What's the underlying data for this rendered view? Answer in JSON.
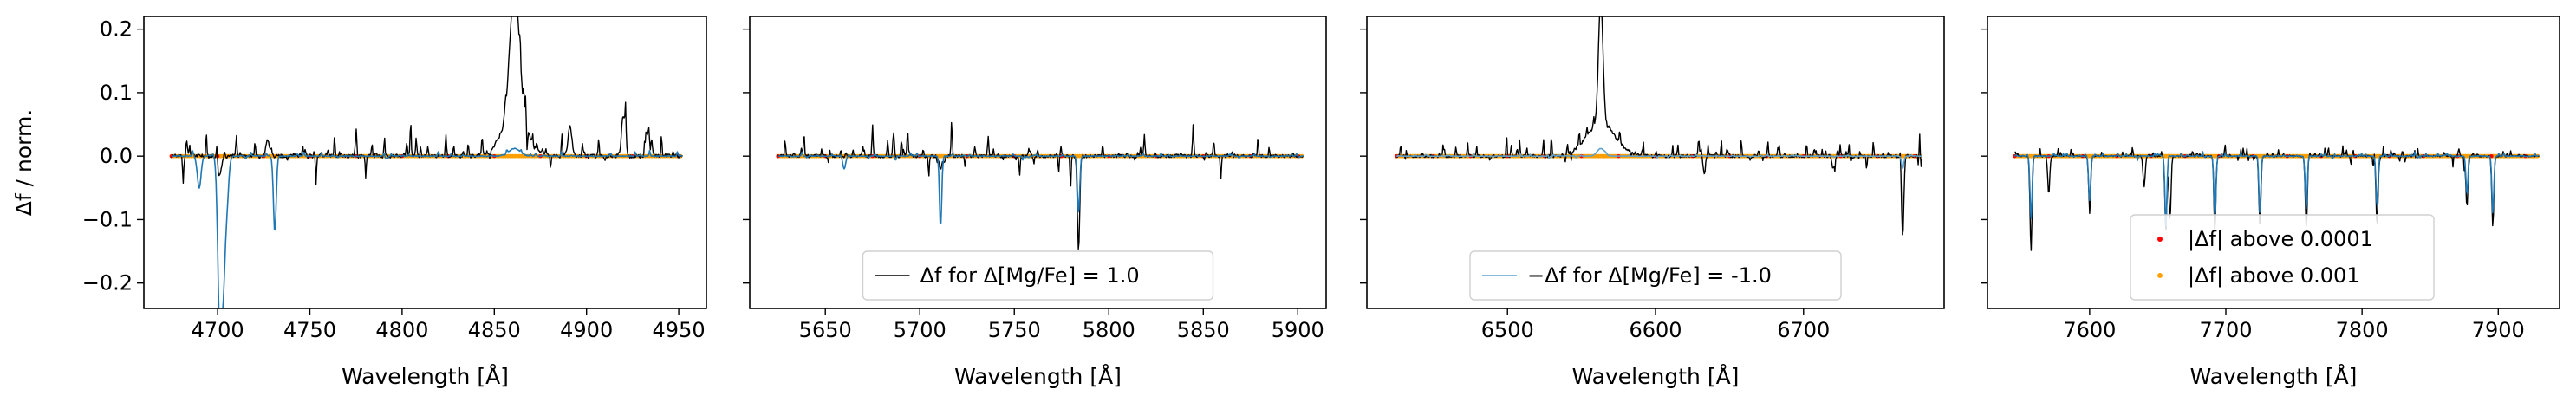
{
  "chart_data": [
    {
      "type": "line",
      "xlabel": "Wavelength [Å]",
      "ylabel": "Δf / norm.",
      "xlim": [
        4660,
        4965
      ],
      "ylim": [
        -0.24,
        0.22
      ],
      "xticks": [
        4700,
        4750,
        4800,
        4850,
        4900,
        4950
      ],
      "yticks": [
        -0.2,
        -0.1,
        0.0,
        0.1,
        0.2
      ],
      "ytick_labels": [
        "−0.2",
        "−0.1",
        "0.0",
        "0.1",
        "0.2"
      ],
      "x_range": [
        4675,
        4952
      ],
      "series": [
        {
          "style": "black-line",
          "color": "#000000",
          "features": [
            [
              4701,
              -0.03,
              2
            ],
            [
              4727,
              0.02,
              2
            ],
            [
              4861,
              0.21,
              5
            ],
            [
              4861,
              0.06,
              14
            ],
            [
              4920,
              0.06,
              2
            ],
            [
              4891,
              0.05,
              2
            ],
            [
              4934,
              0.05,
              2
            ]
          ],
          "noise": 0.025,
          "seed": 11
        },
        {
          "style": "blue-line",
          "color": "#1f77b4",
          "features": [
            [
              4701,
              -0.24,
              2
            ],
            [
              4703,
              -0.19,
              2
            ],
            [
              4731,
              -0.12,
              1.5
            ],
            [
              4690,
              -0.05,
              2
            ],
            [
              4861,
              0.012,
              6
            ],
            [
              4705,
              -0.07,
              2
            ]
          ],
          "noise": 0.004,
          "seed": 23
        },
        {
          "style": "orange-points",
          "color": "#ff9f00",
          "threshold_label": "|Δf| above 0.001"
        },
        {
          "style": "red-points",
          "color": "#ff0000",
          "threshold_label": "|Δf| above 0.0001"
        }
      ]
    },
    {
      "type": "line",
      "xlabel": "Wavelength [Å]",
      "xlim": [
        5610,
        5915
      ],
      "ylim": [
        -0.24,
        0.22
      ],
      "xticks": [
        5650,
        5700,
        5750,
        5800,
        5850,
        5900
      ],
      "x_range": [
        5625,
        5903
      ],
      "legend": {
        "position": "lower center",
        "entries": [
          {
            "label": "Δf for Δ[Mg/Fe] = 1.0",
            "color": "#000000",
            "kind": "line"
          }
        ]
      },
      "series": [
        {
          "style": "black-line",
          "color": "#000000",
          "features": [
            [
              5784,
              -0.15,
              1.2
            ],
            [
              5711,
              -0.02,
              1.5
            ]
          ],
          "noise": 0.02,
          "seed": 37
        },
        {
          "style": "blue-line",
          "color": "#1f77b4",
          "features": [
            [
              5711,
              -0.11,
              1.2
            ],
            [
              5784,
              -0.09,
              1.2
            ],
            [
              5660,
              -0.02,
              1.5
            ]
          ],
          "noise": 0.003,
          "seed": 41
        },
        {
          "style": "orange-points",
          "color": "#ff9f00"
        },
        {
          "style": "red-points",
          "color": "#ff0000"
        }
      ]
    },
    {
      "type": "line",
      "xlabel": "Wavelength [Å]",
      "xlim": [
        6405,
        6795
      ],
      "ylim": [
        -0.24,
        0.22
      ],
      "xticks": [
        6500,
        6600,
        6700
      ],
      "x_range": [
        6425,
        6780
      ],
      "legend": {
        "position": "lower center",
        "entries": [
          {
            "label": "−Δf for Δ[Mg/Fe] = -1.0",
            "color": "#5fa2ce",
            "kind": "line"
          }
        ]
      },
      "series": [
        {
          "style": "black-line",
          "color": "#000000",
          "features": [
            [
              6563,
              0.2,
              3
            ],
            [
              6563,
              0.05,
              20
            ],
            [
              6633,
              -0.03,
              1.5
            ],
            [
              6767,
              -0.13,
              1.5
            ],
            [
              6720,
              -0.02,
              1.5
            ]
          ],
          "noise": 0.02,
          "seed": 53
        },
        {
          "style": "blue-line",
          "color": "#5fa2ce",
          "features": [
            [
              6563,
              0.012,
              5
            ],
            [
              6767,
              -0.02,
              1.5
            ]
          ],
          "noise": 0.002,
          "seed": 59
        },
        {
          "style": "orange-points",
          "color": "#ff9f00"
        },
        {
          "style": "red-points",
          "color": "#ff0000"
        }
      ]
    },
    {
      "type": "line",
      "xlabel": "Wavelength [Å]",
      "xlim": [
        7525,
        7945
      ],
      "ylim": [
        -0.24,
        0.22
      ],
      "xticks": [
        7600,
        7700,
        7800,
        7900
      ],
      "x_range": [
        7545,
        7930
      ],
      "legend": {
        "position": "lower center",
        "entries": [
          {
            "label": "|Δf| above 0.0001",
            "color": "#ff0000",
            "kind": "point"
          },
          {
            "label": "|Δf| above 0.001",
            "color": "#ff9f00",
            "kind": "point"
          }
        ]
      },
      "series": [
        {
          "style": "black-line",
          "color": "#000000",
          "features": [
            [
              7557,
              -0.15,
              1.5
            ],
            [
              7600,
              -0.09,
              1.5
            ],
            [
              7656,
              -0.12,
              1.5
            ],
            [
              7659,
              -0.1,
              1.5
            ],
            [
              7692,
              -0.12,
              1.5
            ],
            [
              7725,
              -0.11,
              1.5
            ],
            [
              7759,
              -0.11,
              1.5
            ],
            [
              7811,
              -0.11,
              1.5
            ],
            [
              7877,
              -0.08,
              1.5
            ],
            [
              7896,
              -0.11,
              1.5
            ],
            [
              7570,
              -0.06,
              1.5
            ],
            [
              7640,
              -0.05,
              1.5
            ]
          ],
          "noise": 0.01,
          "seed": 71
        },
        {
          "style": "blue-line",
          "color": "#1f77b4",
          "features": [
            [
              7557,
              -0.1,
              1.5
            ],
            [
              7600,
              -0.07,
              1.5
            ],
            [
              7656,
              -0.11,
              1.5
            ],
            [
              7692,
              -0.1,
              1.5
            ],
            [
              7725,
              -0.09,
              1.5
            ],
            [
              7759,
              -0.09,
              1.5
            ],
            [
              7811,
              -0.08,
              1.5
            ],
            [
              7877,
              -0.06,
              1.5
            ],
            [
              7896,
              -0.09,
              1.5
            ]
          ],
          "noise": 0.004,
          "seed": 79
        },
        {
          "style": "orange-points",
          "color": "#ff9f00"
        },
        {
          "style": "red-points",
          "color": "#ff0000"
        }
      ]
    }
  ]
}
